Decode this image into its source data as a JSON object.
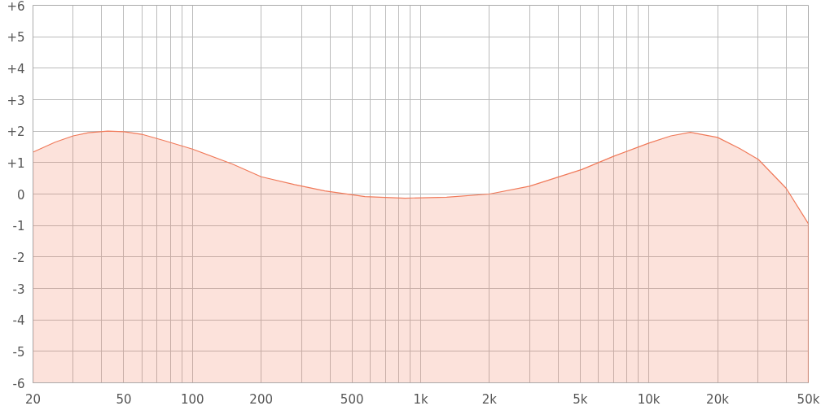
{
  "chart_data": {
    "type": "area",
    "log": "x",
    "grid": true,
    "x": [
      20,
      25,
      30,
      35,
      42.5,
      50,
      60,
      75,
      100,
      150,
      200,
      280,
      380,
      570,
      853,
      1300,
      2000,
      3000,
      5080,
      7000,
      10000,
      12500,
      15200,
      20000,
      25000,
      30200,
      40000,
      50000
    ],
    "series": [
      {
        "color": "#f07a5a",
        "values": [
          1.33,
          1.65,
          1.85,
          1.95,
          2.0,
          1.98,
          1.9,
          1.7,
          1.43,
          0.95,
          0.55,
          0.3,
          0.1,
          -0.08,
          -0.13,
          -0.1,
          0.0,
          0.25,
          0.78,
          1.2,
          1.62,
          1.85,
          1.96,
          1.8,
          1.45,
          1.1,
          0.18,
          -0.94
        ]
      }
    ],
    "xlim": [
      20,
      50000
    ],
    "xticks": [
      {
        "value": 20,
        "label": "20"
      },
      {
        "value": 30,
        "label": null
      },
      {
        "value": 40,
        "label": null
      },
      {
        "value": 50,
        "label": "50"
      },
      {
        "value": 60,
        "label": null
      },
      {
        "value": 70,
        "label": null
      },
      {
        "value": 80,
        "label": null
      },
      {
        "value": 90,
        "label": null
      },
      {
        "value": 100,
        "label": "100"
      },
      {
        "value": 200,
        "label": "200"
      },
      {
        "value": 300,
        "label": null
      },
      {
        "value": 400,
        "label": null
      },
      {
        "value": 500,
        "label": "500"
      },
      {
        "value": 600,
        "label": null
      },
      {
        "value": 700,
        "label": null
      },
      {
        "value": 800,
        "label": null
      },
      {
        "value": 900,
        "label": null
      },
      {
        "value": 1000,
        "label": "1k"
      },
      {
        "value": 2000,
        "label": "2k"
      },
      {
        "value": 3000,
        "label": null
      },
      {
        "value": 4000,
        "label": null
      },
      {
        "value": 5000,
        "label": "5k"
      },
      {
        "value": 6000,
        "label": null
      },
      {
        "value": 7000,
        "label": null
      },
      {
        "value": 8000,
        "label": null
      },
      {
        "value": 9000,
        "label": null
      },
      {
        "value": 10000,
        "label": "10k"
      },
      {
        "value": 20000,
        "label": "20k"
      },
      {
        "value": 30000,
        "label": null
      },
      {
        "value": 40000,
        "label": null
      },
      {
        "value": 50000,
        "label": "50k"
      }
    ],
    "ylim": [
      -6,
      6
    ],
    "yticks": [
      {
        "value": -6,
        "label": "-6"
      },
      {
        "value": -5,
        "label": "-5"
      },
      {
        "value": -4,
        "label": "-4"
      },
      {
        "value": -3,
        "label": "-3"
      },
      {
        "value": -2,
        "label": "-2"
      },
      {
        "value": -1,
        "label": "-1"
      },
      {
        "value": 0,
        "label": "0"
      },
      {
        "value": 1,
        "label": "+1"
      },
      {
        "value": 2,
        "label": "+2"
      },
      {
        "value": 3,
        "label": "+3"
      },
      {
        "value": 4,
        "label": "+4"
      },
      {
        "value": 5,
        "label": "+5"
      },
      {
        "value": 6,
        "label": "+6"
      }
    ]
  }
}
